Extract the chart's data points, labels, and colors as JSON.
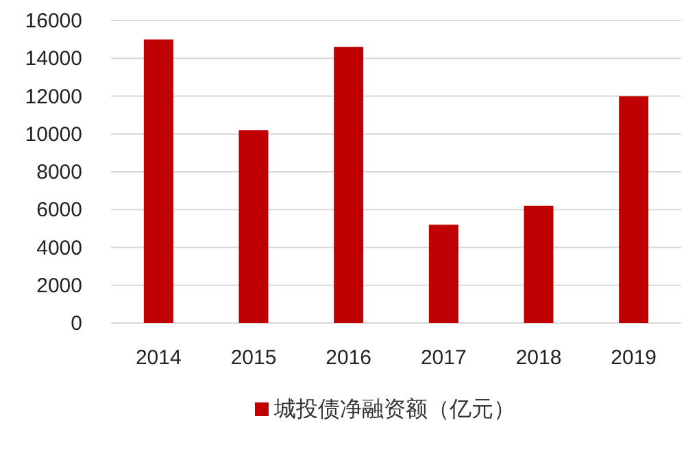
{
  "chart_data": {
    "type": "bar",
    "categories": [
      "2014",
      "2015",
      "2016",
      "2017",
      "2018",
      "2019"
    ],
    "series": [
      {
        "name": "城投债净融资额（亿元）",
        "color": "#c00000",
        "values": [
          15000,
          10200,
          14600,
          5200,
          6200,
          12000
        ]
      }
    ],
    "ylim": [
      0,
      16000
    ],
    "yticks": [
      0,
      2000,
      4000,
      6000,
      8000,
      10000,
      12000,
      14000,
      16000
    ],
    "grid": "y",
    "legend": "bottom"
  }
}
